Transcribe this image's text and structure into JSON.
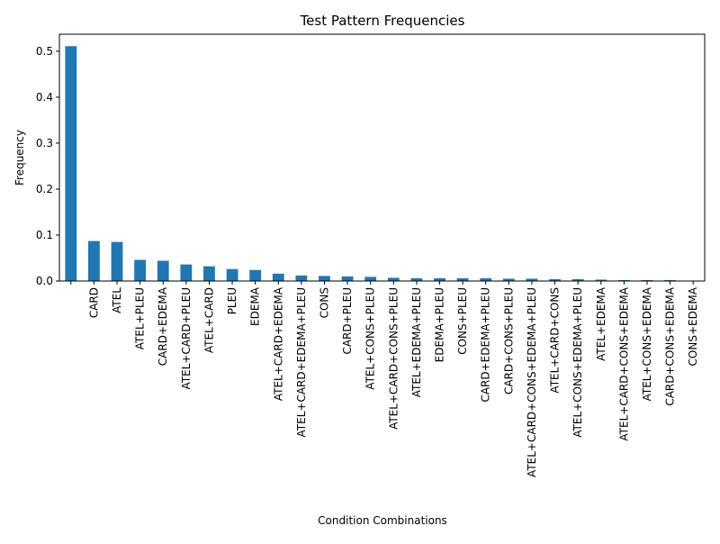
{
  "chart_data": {
    "type": "bar",
    "title": "Test Pattern Frequencies",
    "xlabel": "Condition Combinations",
    "ylabel": "Frequency",
    "ylim": [
      0,
      0.537
    ],
    "yticks": [
      "0.0",
      "0.1",
      "0.2",
      "0.3",
      "0.4",
      "0.5"
    ],
    "ytick_values": [
      0.0,
      0.1,
      0.2,
      0.3,
      0.4,
      0.5
    ],
    "grid": false,
    "bar_color": "#1f77b4",
    "categories": [
      "",
      "CARD",
      "ATEL",
      "ATEL+PLEU",
      "CARD+EDEMA",
      "ATEL+CARD+PLEU",
      "ATEL+CARD",
      "PLEU",
      "EDEMA",
      "ATEL+CARD+EDEMA",
      "ATEL+CARD+EDEMA+PLEU",
      "CONS",
      "CARD+PLEU",
      "ATEL+CONS+PLEU",
      "ATEL+CARD+CONS+PLEU",
      "ATEL+EDEMA+PLEU",
      "EDEMA+PLEU",
      "CONS+PLEU",
      "CARD+EDEMA+PLEU",
      "CARD+CONS+PLEU",
      "ATEL+CARD+CONS+EDEMA+PLEU",
      "ATEL+CARD+CONS",
      "ATEL+CONS+EDEMA+PLEU",
      "ATEL+EDEMA",
      "ATEL+CARD+CONS+EDEMA",
      "ATEL+CONS+EDEMA",
      "CARD+CONS+EDEMA",
      "CONS+EDEMA"
    ],
    "values": [
      0.511,
      0.087,
      0.085,
      0.046,
      0.044,
      0.036,
      0.032,
      0.026,
      0.024,
      0.016,
      0.012,
      0.011,
      0.01,
      0.009,
      0.007,
      0.006,
      0.006,
      0.006,
      0.006,
      0.005,
      0.005,
      0.004,
      0.004,
      0.003,
      0.002,
      0.002,
      0.002,
      0.001
    ]
  }
}
